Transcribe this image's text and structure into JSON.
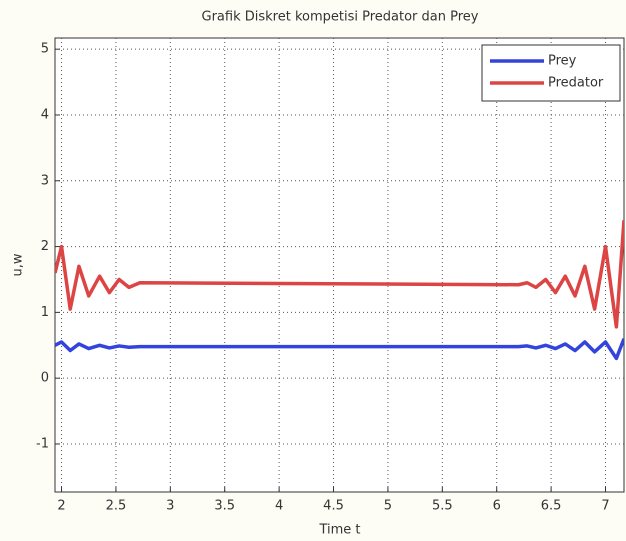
{
  "chart_data": {
    "type": "line",
    "title": "Grafik Diskret kompetisi Predator dan Prey",
    "xlabel": "Time t",
    "ylabel": "u,w",
    "x": [
      1.94,
      2.0,
      2.08,
      2.16,
      2.25,
      2.35,
      2.44,
      2.53,
      2.62,
      2.72,
      6.2,
      6.28,
      6.36,
      6.45,
      6.54,
      6.63,
      6.72,
      6.81,
      6.9,
      7.0,
      7.1,
      7.17
    ],
    "series": [
      {
        "name": "Prey",
        "color": "#3344dd",
        "values": [
          0.5,
          0.55,
          0.42,
          0.52,
          0.45,
          0.5,
          0.46,
          0.49,
          0.47,
          0.48,
          0.48,
          0.49,
          0.46,
          0.5,
          0.45,
          0.52,
          0.42,
          0.55,
          0.4,
          0.55,
          0.3,
          0.6
        ]
      },
      {
        "name": "Predator",
        "color": "#dd4444",
        "values": [
          1.6,
          2.0,
          1.05,
          1.7,
          1.25,
          1.55,
          1.3,
          1.5,
          1.38,
          1.45,
          1.42,
          1.45,
          1.38,
          1.5,
          1.3,
          1.55,
          1.25,
          1.7,
          1.05,
          2.0,
          0.78,
          2.4
        ]
      }
    ],
    "xlim": [
      1.94,
      7.17
    ],
    "ylim": [
      -1.73,
      5.17
    ],
    "xticks": [
      2,
      2.5,
      3,
      3.5,
      4,
      4.5,
      5,
      5.5,
      6,
      6.5,
      7
    ],
    "yticks": [
      -1,
      0,
      1,
      2,
      3,
      4,
      5
    ],
    "grid": true,
    "legend": "top-right"
  }
}
